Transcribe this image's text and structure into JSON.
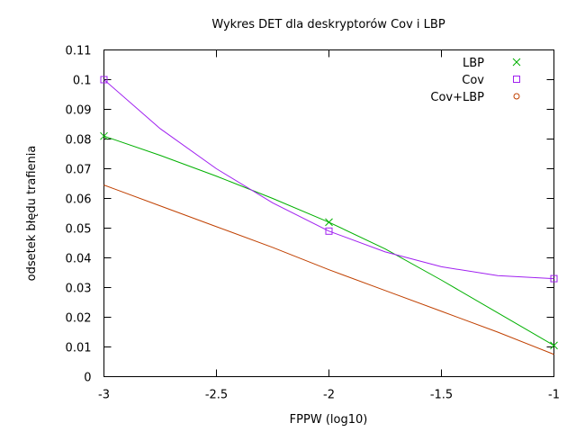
{
  "chart_data": {
    "type": "line",
    "title": "Wykres DET dla deskryptorów Cov i LBP",
    "xlabel": "FPPW (log10)",
    "ylabel": "odsetek błędu trafienia",
    "xlim": [
      -3,
      -1
    ],
    "ylim": [
      0,
      0.11
    ],
    "xticks": [
      "-3",
      "-2.5",
      "-2",
      "-1.5",
      "-1"
    ],
    "yticks": [
      "0",
      "0.01",
      "0.02",
      "0.03",
      "0.04",
      "0.05",
      "0.06",
      "0.07",
      "0.08",
      "0.09",
      "0.1",
      "0.11"
    ],
    "grid": false,
    "legend_position": "top-right",
    "series": [
      {
        "name": "LBP",
        "color": "#00b000",
        "marker": "x",
        "points": [
          [
            -3,
            0.081
          ],
          [
            -2,
            0.052
          ],
          [
            -1,
            0.0105
          ]
        ],
        "curve": [
          [
            -3,
            0.081
          ],
          [
            -2.75,
            0.0745
          ],
          [
            -2.5,
            0.0675
          ],
          [
            -2.25,
            0.06
          ],
          [
            -2,
            0.052
          ],
          [
            -1.75,
            0.043
          ],
          [
            -1.5,
            0.0325
          ],
          [
            -1.25,
            0.0215
          ],
          [
            -1,
            0.0105
          ]
        ]
      },
      {
        "name": "Cov",
        "color": "#a020f0",
        "marker": "square",
        "points": [
          [
            -3,
            0.1
          ],
          [
            -2,
            0.049
          ],
          [
            -1,
            0.033
          ]
        ],
        "curve": [
          [
            -3,
            0.1
          ],
          [
            -2.75,
            0.0835
          ],
          [
            -2.5,
            0.07
          ],
          [
            -2.25,
            0.0585
          ],
          [
            -2,
            0.049
          ],
          [
            -1.75,
            0.042
          ],
          [
            -1.5,
            0.037
          ],
          [
            -1.25,
            0.034
          ],
          [
            -1,
            0.033
          ]
        ]
      },
      {
        "name": "Cov+LBP",
        "color": "#c04000",
        "marker": "circle",
        "points": [],
        "curve": [
          [
            -3,
            0.0645
          ],
          [
            -2.75,
            0.0575
          ],
          [
            -2.5,
            0.0505
          ],
          [
            -2.25,
            0.0435
          ],
          [
            -2,
            0.036
          ],
          [
            -1.75,
            0.029
          ],
          [
            -1.5,
            0.022
          ],
          [
            -1.25,
            0.015
          ],
          [
            -1,
            0.0075
          ]
        ]
      }
    ]
  }
}
